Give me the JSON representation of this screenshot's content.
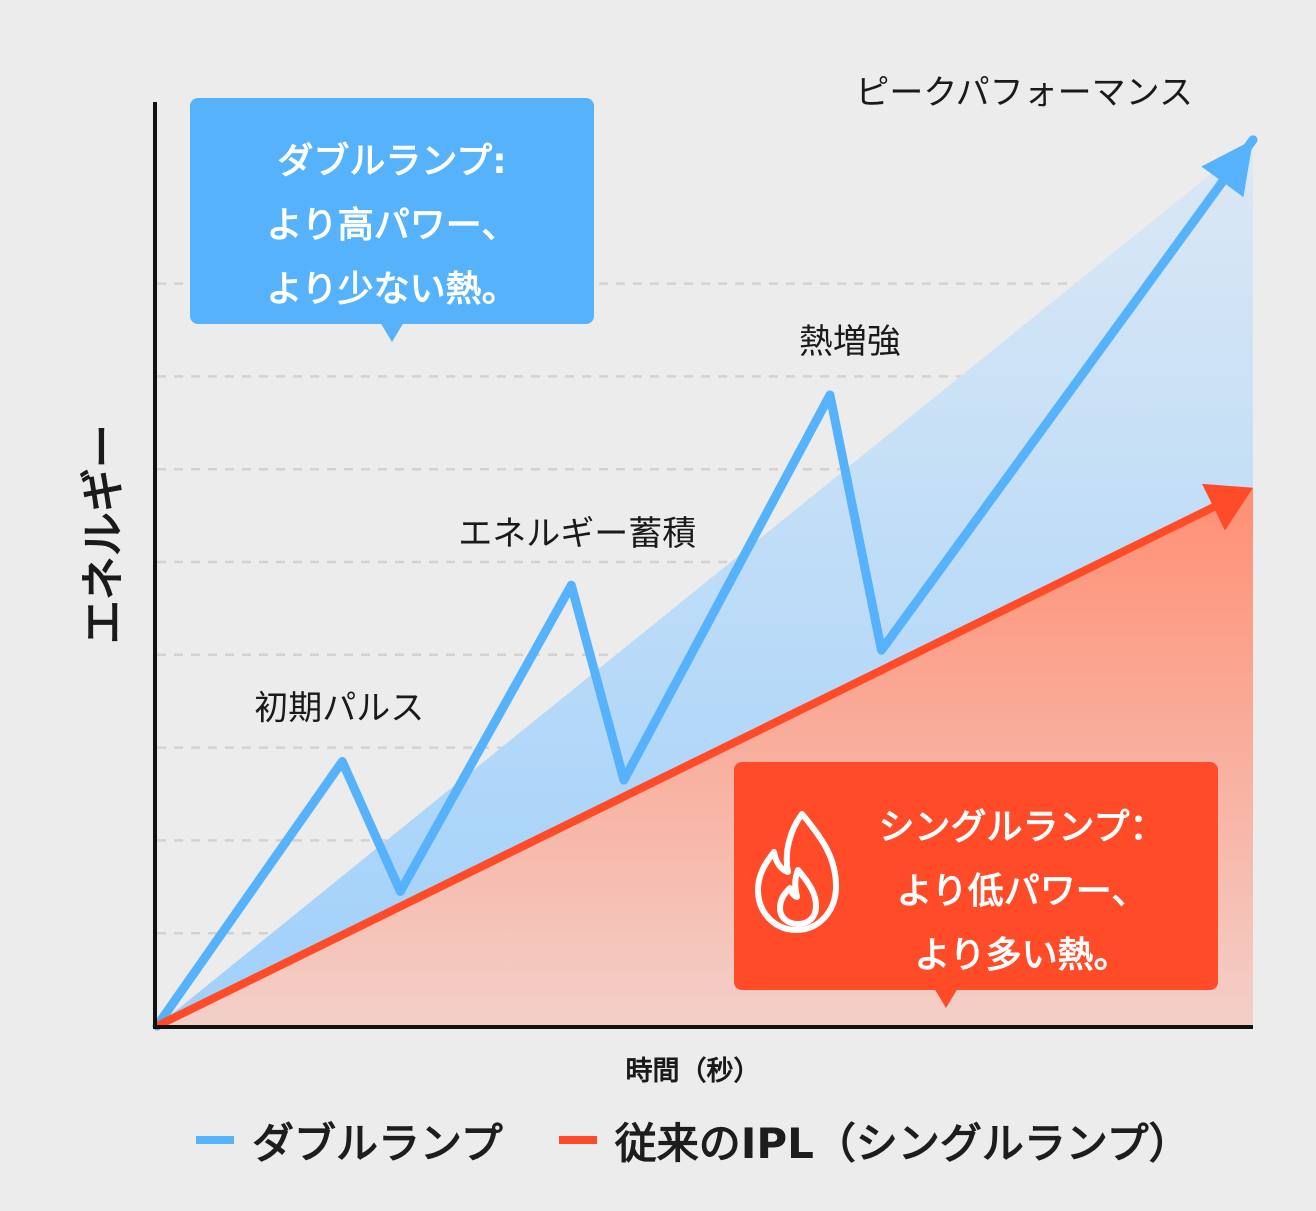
{
  "chart_data": {
    "type": "line",
    "ylabel": "エネルギー",
    "xlabel": "時間（秒）",
    "xlim": [
      0,
      100
    ],
    "ylim": [
      0,
      100
    ],
    "gridlines_y": [
      10,
      20,
      30,
      40,
      50,
      60,
      70,
      80
    ],
    "series": [
      {
        "name": "ダブルランプ",
        "color": "#56b2fb",
        "points": [
          [
            0,
            0
          ],
          [
            16.9,
            28.5
          ],
          [
            22.2,
            14.5
          ],
          [
            37.8,
            47.5
          ],
          [
            42.6,
            26.5
          ],
          [
            61.4,
            68
          ],
          [
            66.1,
            40.5
          ],
          [
            100,
            95.5
          ]
        ]
      },
      {
        "name": "従来のIPL（シングルランプ）",
        "color": "#ff4b28",
        "points": [
          [
            0,
            0
          ],
          [
            100,
            58
          ]
        ]
      }
    ],
    "annotations": [
      {
        "text": "初期パルス",
        "x": 16.9,
        "y": 28.5
      },
      {
        "text": "エネルギー蓄積",
        "x": 37.8,
        "y": 47.5
      },
      {
        "text": "熱増強",
        "x": 61.4,
        "y": 68
      },
      {
        "text": "ピークパフォーマンス",
        "x": 100,
        "y": 95.5
      }
    ],
    "callouts": {
      "double": [
        "ダブルランプ:",
        "より高パワー、",
        "より少ない熱。"
      ],
      "single": [
        "シングルランプ：",
        "より低パワー、",
        "より多い熱。"
      ]
    },
    "legend": [
      {
        "label": "ダブルランプ",
        "color": "#56b2fb"
      },
      {
        "label": "従来のIPL（シングルランプ）",
        "color": "#ff4b28"
      }
    ]
  },
  "icons": {
    "single_callout_icon": "flame-icon"
  }
}
